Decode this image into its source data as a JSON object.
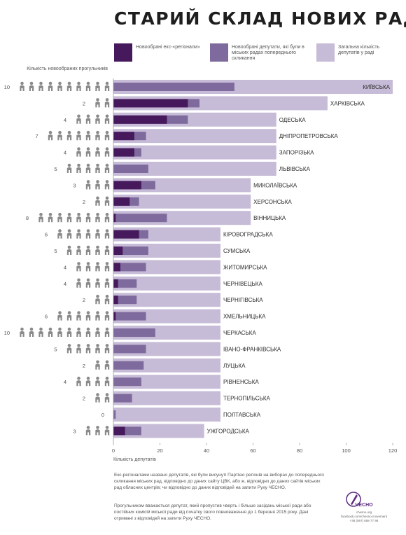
{
  "title": "СТАРИЙ СКЛАД НОВИХ РАД",
  "legend": [
    {
      "label": "Новообрані екс-«регіонали»",
      "color": "#46195c"
    },
    {
      "label": "Новообрані депутати, які були в міських радах попереднього скликання",
      "color": "#7e6a9c"
    },
    {
      "label": "Загальна кількість депутатів у раді",
      "color": "#c7bcd7"
    }
  ],
  "count_axis_label": "Кількість новообраних прогульників",
  "chart_data": {
    "type": "bar",
    "xlabel": "Кількість депутатів",
    "xlim": [
      0,
      120
    ],
    "xticks": [
      0,
      20,
      40,
      60,
      80,
      100,
      120
    ],
    "series": [
      {
        "name": "Новообрані екс-«регіонали»",
        "color": "#46195c"
      },
      {
        "name": "Новообрані депутати, які були в міських радах попереднього скликання",
        "color": "#7e6a9c"
      },
      {
        "name": "Загальна кількість депутатів у раді",
        "color": "#c7bcd7"
      }
    ],
    "rows": [
      {
        "city": "КИЇВСЬКА",
        "total": 120,
        "prev": 52,
        "ex": 0,
        "truants": 10
      },
      {
        "city": "ХАРКІВСЬКА",
        "total": 92,
        "prev": 37,
        "ex": 32,
        "truants": 2
      },
      {
        "city": "ОДЕСЬКА",
        "total": 70,
        "prev": 32,
        "ex": 23,
        "truants": 4
      },
      {
        "city": "ДНІПРОПЕТРОВСЬКА",
        "total": 70,
        "prev": 14,
        "ex": 9,
        "truants": 7
      },
      {
        "city": "ЗАПОРІЗЬКА",
        "total": 70,
        "prev": 12,
        "ex": 9,
        "truants": 4
      },
      {
        "city": "ЛЬВІВСЬКА",
        "total": 70,
        "prev": 15,
        "ex": 0,
        "truants": 5
      },
      {
        "city": "МИКОЛАЇВСЬКА",
        "total": 59,
        "prev": 18,
        "ex": 12,
        "truants": 3
      },
      {
        "city": "ХЕРСОНСЬКА",
        "total": 59,
        "prev": 11,
        "ex": 7,
        "truants": 2
      },
      {
        "city": "ВІННИЦЬКА",
        "total": 59,
        "prev": 23,
        "ex": 1,
        "truants": 8
      },
      {
        "city": "КІРОВОГРАДСЬКА",
        "total": 46,
        "prev": 15,
        "ex": 11,
        "truants": 6
      },
      {
        "city": "СУМСЬКА",
        "total": 46,
        "prev": 15,
        "ex": 4,
        "truants": 5
      },
      {
        "city": "ЖИТОМИРСЬКА",
        "total": 46,
        "prev": 14,
        "ex": 3,
        "truants": 4
      },
      {
        "city": "ЧЕРНІВЕЦЬКА",
        "total": 46,
        "prev": 10,
        "ex": 2,
        "truants": 4
      },
      {
        "city": "ЧЕРНІГІВСЬКА",
        "total": 46,
        "prev": 10,
        "ex": 2,
        "truants": 2
      },
      {
        "city": "ХМЕЛЬНИЦЬКА",
        "total": 46,
        "prev": 14,
        "ex": 1,
        "truants": 6
      },
      {
        "city": "ЧЕРКАСЬКА",
        "total": 46,
        "prev": 18,
        "ex": 0,
        "truants": 10
      },
      {
        "city": "ІВАНО-ФРАНКІВСЬКА",
        "total": 46,
        "prev": 14,
        "ex": 0,
        "truants": 5
      },
      {
        "city": "ЛУЦЬКА",
        "total": 46,
        "prev": 13,
        "ex": 0,
        "truants": 2
      },
      {
        "city": "РІВНЕНСЬКА",
        "total": 46,
        "prev": 12,
        "ex": 0,
        "truants": 4
      },
      {
        "city": "ТЕРНОПІЛЬСЬКА",
        "total": 46,
        "prev": 8,
        "ex": 0,
        "truants": 2
      },
      {
        "city": "ПОЛТАВСЬКА",
        "total": 46,
        "prev": 1,
        "ex": 0,
        "truants": 0
      },
      {
        "city": "УЖГОРОДСЬКА",
        "total": 39,
        "prev": 12,
        "ex": 5,
        "truants": 3
      }
    ]
  },
  "notes": [
    "Екс-регіоналами названо депутатів, які були висунуті Партією регіонів на виборах до попереднього скликання міських рад, відповідно до даних сайту ЦВК, або ж, відповідно до даних сайтів міських рад обласних центрів; чи відповідно до даних відповідей на запити Руху ЧЕСНО.",
    "Прогульником вважається депутат, який пропустив чверть і більше засідань міської ради або постійних комісій міської ради від початку свого повноваження до 1 березня 2015 року. Дані отримані з відповідей на запити Руху ЧЕСНО."
  ],
  "logo": {
    "name": "ЧЕСНО",
    "lines": [
      "chesno.org",
      "facebook.com/chesno.movement",
      "+38 (067) 658 77 98"
    ],
    "icon": "pen-nib-icon"
  }
}
